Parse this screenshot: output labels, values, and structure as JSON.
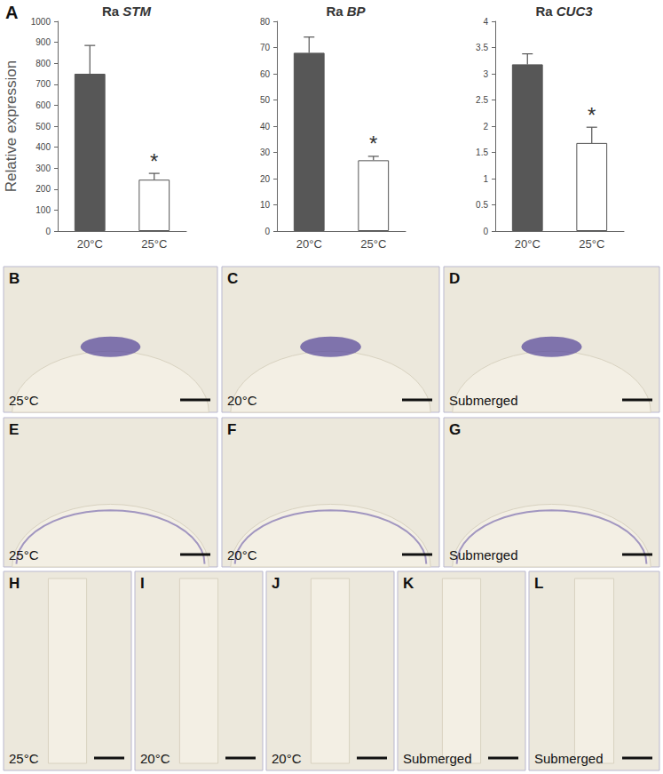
{
  "chart_data": [
    {
      "type": "bar",
      "title": "Ra STM",
      "y_label": "Relative expression",
      "categories": [
        "20°C",
        "25°C"
      ],
      "values": [
        750,
        245
      ],
      "errors": [
        135,
        30
      ],
      "colors": [
        "#575757",
        "#ffffff"
      ],
      "ylim": [
        0,
        1000
      ],
      "yticks": [
        0,
        100,
        200,
        300,
        400,
        500,
        600,
        700,
        800,
        900,
        1000
      ],
      "annotations": [
        {
          "category": "25°C",
          "text": "*"
        }
      ]
    },
    {
      "type": "bar",
      "title": "Ra BP",
      "categories": [
        "20°C",
        "25°C"
      ],
      "values": [
        68,
        27
      ],
      "errors": [
        6,
        1.5
      ],
      "colors": [
        "#575757",
        "#ffffff"
      ],
      "ylim": [
        0,
        80
      ],
      "yticks": [
        0,
        10,
        20,
        30,
        40,
        50,
        60,
        70,
        80
      ],
      "annotations": [
        {
          "category": "25°C",
          "text": "*"
        }
      ]
    },
    {
      "type": "bar",
      "title": "Ra CUC3",
      "categories": [
        "20°C",
        "25°C"
      ],
      "values": [
        3.18,
        1.68
      ],
      "errors": [
        0.2,
        0.3
      ],
      "colors": [
        "#575757",
        "#ffffff"
      ],
      "ylim": [
        0,
        4
      ],
      "yticks": [
        0,
        0.5,
        1,
        1.5,
        2,
        2.5,
        3,
        3.5,
        4
      ],
      "annotations": [
        {
          "category": "25°C",
          "text": "*"
        }
      ]
    }
  ],
  "figure_label": "A",
  "panels": [
    {
      "label": "B",
      "caption": "25°C"
    },
    {
      "label": "C",
      "caption": "20°C"
    },
    {
      "label": "D",
      "caption": "Submerged"
    },
    {
      "label": "E",
      "caption": "25°C"
    },
    {
      "label": "F",
      "caption": "20°C"
    },
    {
      "label": "G",
      "caption": "Submerged"
    },
    {
      "label": "H",
      "caption": "25°C"
    },
    {
      "label": "I",
      "caption": "20°C"
    },
    {
      "label": "J",
      "caption": "20°C"
    },
    {
      "label": "K",
      "caption": "Submerged"
    },
    {
      "label": "L",
      "caption": "Submerged"
    }
  ]
}
